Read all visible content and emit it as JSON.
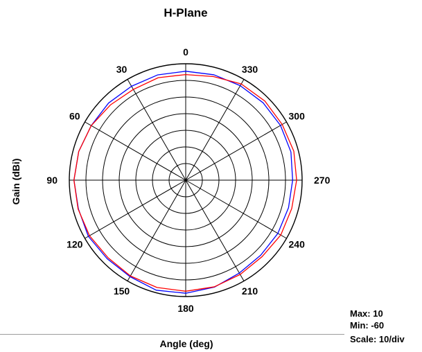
{
  "chart_data": {
    "type": "polar-line",
    "title": "H-Plane",
    "xlabel": "Angle  (deg)",
    "ylabel": "Gain  (dBi)",
    "rlim": [
      -60,
      10
    ],
    "r_scale_per_div": 10,
    "angle_direction": "counterclockwise",
    "zero_angle_position": "top",
    "grid": true,
    "angle_ticks": [
      0,
      30,
      60,
      90,
      120,
      150,
      180,
      210,
      240,
      270,
      300,
      330
    ],
    "stats": {
      "max": "Max: 10",
      "min": "Min: -60",
      "scale": "Scale: 10/div"
    },
    "series": [
      {
        "color": "#0000ff",
        "angles": [
          0,
          15,
          30,
          45,
          60,
          75,
          90,
          105,
          120,
          135,
          150,
          165,
          180,
          195,
          210,
          225,
          240,
          255,
          270,
          285,
          300,
          315,
          330,
          345
        ],
        "gain": [
          5.5,
          5.5,
          5.2,
          5.6,
          5.6,
          6.6,
          7.2,
          6.8,
          7.6,
          6.8,
          7.0,
          8.5,
          8.0,
          6.6,
          4.5,
          3.8,
          4.0,
          4.0,
          4.3,
          5.5,
          5.8,
          5.8,
          5.6,
          5.6
        ]
      },
      {
        "color": "#ff0000",
        "angles": [
          0,
          15,
          30,
          45,
          60,
          75,
          90,
          105,
          120,
          135,
          150,
          165,
          180,
          195,
          210,
          225,
          240,
          255,
          270,
          285,
          300,
          315,
          330,
          345
        ],
        "gain": [
          3.5,
          3.8,
          3.0,
          4.0,
          5.6,
          6.6,
          7.2,
          7.0,
          6.8,
          6.0,
          6.5,
          6.8,
          6.8,
          6.4,
          5.5,
          5.0,
          6.0,
          6.0,
          6.7,
          7.3,
          7.0,
          7.3,
          6.8,
          4.5
        ]
      }
    ]
  }
}
